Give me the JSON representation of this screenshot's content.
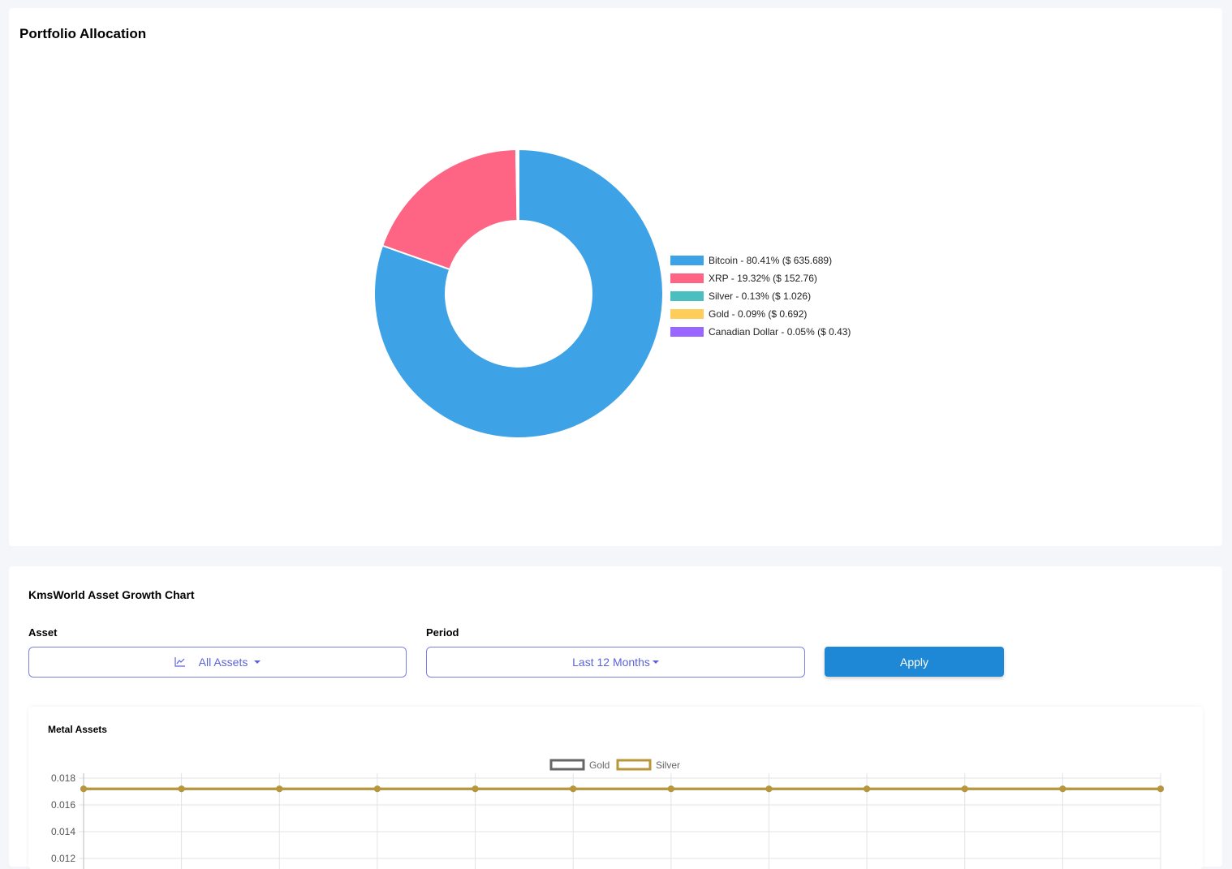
{
  "allocation": {
    "title": "Portfolio Allocation",
    "chart_data": {
      "type": "pie",
      "categories": [
        "Bitcoin",
        "XRP",
        "Silver",
        "Gold",
        "Canadian Dollar"
      ],
      "values": [
        80.41,
        19.32,
        0.13,
        0.09,
        0.05
      ],
      "colors": [
        "#3ea2e6",
        "#fe6584",
        "#4bbfbf",
        "#ffcd5a",
        "#9966ff"
      ],
      "legend_labels": [
        "Bitcoin - 80.41% ($ 635.689)",
        "XRP - 19.32% ($ 152.76)",
        "Silver - 0.13% ($ 1.026)",
        "Gold - 0.09% ($ 0.692)",
        "Canadian Dollar - 0.05% ($ 0.43)"
      ],
      "legend_position": "right"
    }
  },
  "growth": {
    "title": "KmsWorld Asset Growth Chart",
    "asset_label": "Asset",
    "asset_value": "All Assets",
    "asset_icon": "line-chart-icon",
    "period_label": "Period",
    "period_value": "Last 12 Months",
    "apply_label": "Apply",
    "metal": {
      "title": "Metal Assets",
      "chart_data": {
        "type": "line",
        "series": [
          {
            "name": "Gold",
            "color": "#666666",
            "values": [
              0.0172,
              0.0172,
              0.0172,
              0.0172,
              0.0172,
              0.0172,
              0.0172,
              0.0172,
              0.0172,
              0.0172,
              0.0172,
              0.0172
            ]
          },
          {
            "name": "Silver",
            "color": "#b8963a",
            "values": [
              0.0172,
              0.0172,
              0.0172,
              0.0172,
              0.0172,
              0.0172,
              0.0172,
              0.0172,
              0.0172,
              0.0172,
              0.0172,
              0.0172
            ]
          }
        ],
        "y_ticks": [
          "0.018",
          "0.016",
          "0.014",
          "0.012"
        ],
        "y_tick_values": [
          0.018,
          0.016,
          0.014,
          0.012
        ],
        "ylim": [
          0.012,
          0.018
        ],
        "grid": true,
        "legend_position": "top"
      }
    }
  }
}
